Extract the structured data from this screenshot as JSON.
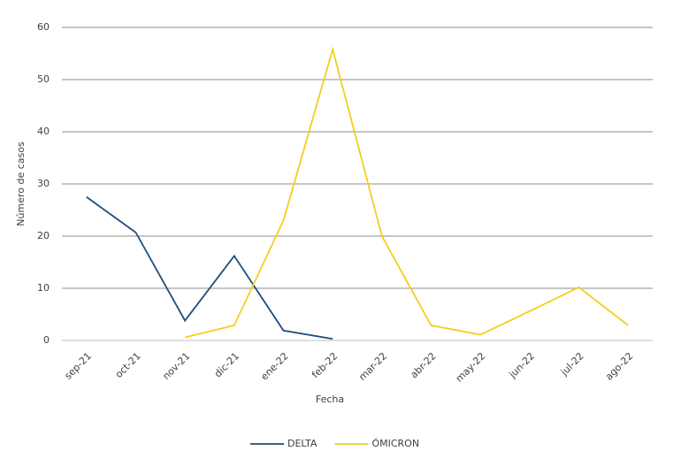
{
  "chart_data": {
    "type": "line",
    "categories": [
      "sep-21",
      "oct-21",
      "nov-21",
      "dic-21",
      "ene-22",
      "feb-22",
      "mar-22",
      "abr-22",
      "may-22",
      "jun-22",
      "jul-22",
      "ago-22"
    ],
    "series": [
      {
        "name": "DELTA",
        "color": "#1f4e79",
        "values": [
          27.5,
          20.7,
          3.8,
          16.2,
          1.9,
          0.3,
          null,
          null,
          null,
          null,
          null,
          null
        ]
      },
      {
        "name": "ÓMICRON",
        "color": "#f2cf1f",
        "values": [
          null,
          null,
          0.6,
          2.9,
          23,
          55.8,
          20,
          2.9,
          1.1,
          5.6,
          10.2,
          2.9
        ]
      }
    ],
    "ylim": [
      0,
      60
    ],
    "yticks": [
      0,
      10,
      20,
      30,
      40,
      50,
      60
    ],
    "grid": true,
    "xlabel": "Fecha",
    "ylabel": "Número de casos",
    "legend": "bottom"
  }
}
